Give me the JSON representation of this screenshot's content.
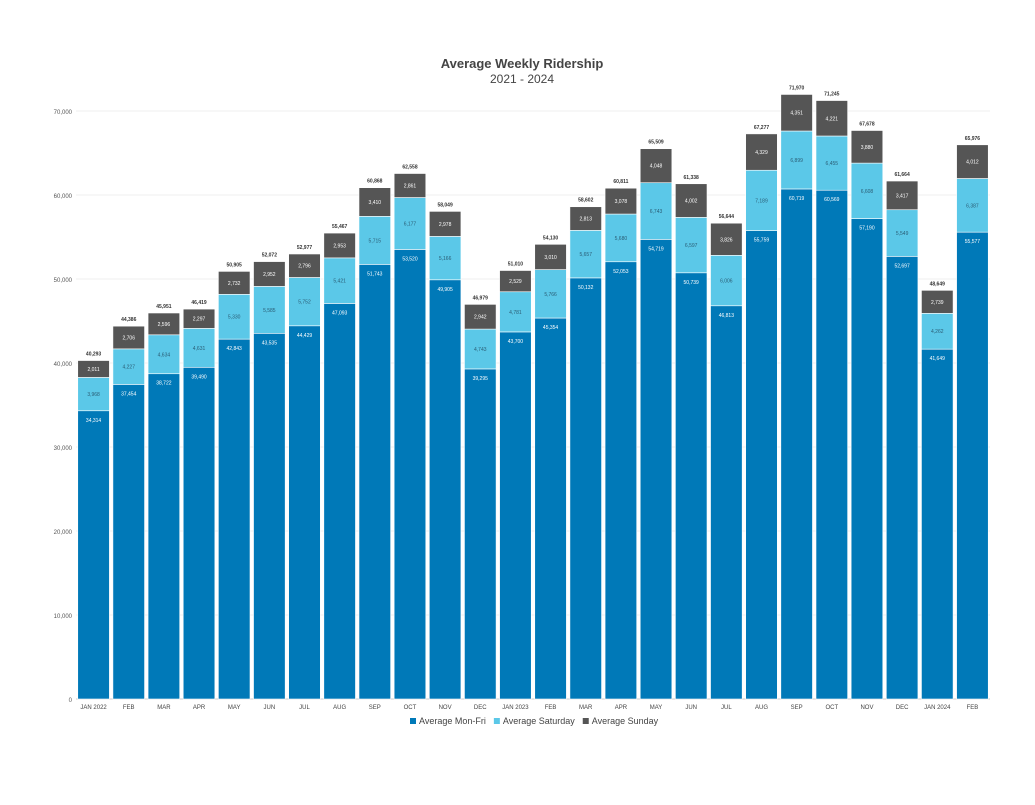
{
  "chart_data": {
    "type": "bar",
    "stacked": true,
    "title": "Average Weekly Ridership",
    "subtitle": "2021 - 2024",
    "xlabel": "",
    "ylabel": "",
    "ylim": [
      0,
      70000
    ],
    "yticks": [
      0,
      10000,
      20000,
      30000,
      40000,
      50000,
      60000,
      70000
    ],
    "ytick_labels": [
      "0",
      "10,000",
      "20,000",
      "30,000",
      "40,000",
      "50,000",
      "60,000",
      "70,000"
    ],
    "grid": true,
    "legend_position": "bottom",
    "categories": [
      "JAN 2022",
      "FEB",
      "MAR",
      "APR",
      "MAY",
      "JUN",
      "JUL",
      "AUG",
      "SEP",
      "OCT",
      "NOV",
      "DEC",
      "JAN 2023",
      "FEB",
      "MAR",
      "APR",
      "MAY",
      "JUN",
      "JUL",
      "AUG",
      "SEP",
      "OCT",
      "NOV",
      "DEC",
      "JAN 2024",
      "FEB"
    ],
    "series": [
      {
        "name": "Average Mon-Fri",
        "color": "#0079B8",
        "values": [
          34314,
          37454,
          38722,
          39490,
          42843,
          43535,
          44429,
          47093,
          51743,
          53520,
          49905,
          39295,
          43700,
          45354,
          50132,
          52053,
          54719,
          50739,
          46813,
          55759,
          60719,
          60569,
          57190,
          52697,
          41649,
          55577
        ]
      },
      {
        "name": "Average Saturday",
        "color": "#5BC8E8",
        "values": [
          3968,
          4227,
          4634,
          4631,
          5330,
          5585,
          5752,
          5421,
          5715,
          6177,
          5166,
          4743,
          4781,
          5766,
          5657,
          5680,
          6743,
          6597,
          6006,
          7189,
          6899,
          6455,
          6608,
          5549,
          4262,
          6387
        ]
      },
      {
        "name": "Average Sunday",
        "color": "#555555",
        "values": [
          2011,
          2706,
          2596,
          2297,
          2732,
          2952,
          2796,
          2953,
          3410,
          2861,
          2978,
          2942,
          2529,
          3010,
          2813,
          3078,
          4048,
          4002,
          3826,
          4329,
          4351,
          4221,
          3880,
          3417,
          2739,
          4012
        ]
      }
    ],
    "totals": [
      40293,
      44386,
      45951,
      46419,
      50905,
      52072,
      52977,
      55467,
      60868,
      62558,
      58049,
      46979,
      51010,
      54130,
      58602,
      60811,
      65509,
      61338,
      56644,
      67277,
      71970,
      71245,
      67678,
      61664,
      48649,
      65976
    ]
  }
}
